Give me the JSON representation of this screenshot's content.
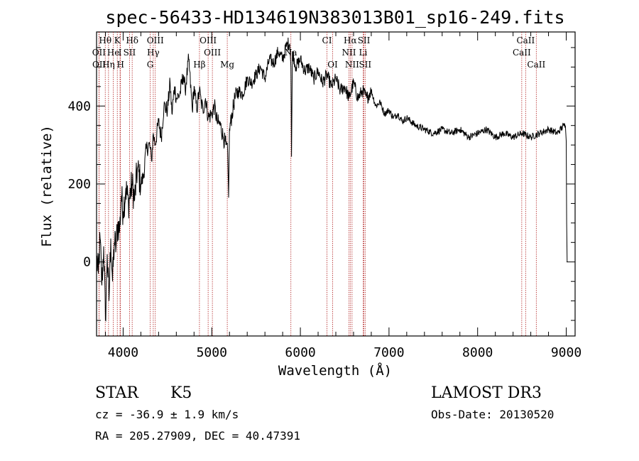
{
  "chart_data": {
    "type": "line",
    "title": "spec-56433-HD134619N383013B01_sp16-249.fits",
    "xlabel": "Wavelength (Å)",
    "ylabel": "Flux (relative)",
    "xlim": [
      3700,
      9100
    ],
    "ylim": [
      -190,
      590
    ],
    "xticks": [
      4000,
      5000,
      6000,
      7000,
      8000,
      9000
    ],
    "yticks": [
      0,
      200,
      400
    ],
    "series": [
      {
        "name": "spectrum",
        "x": [
          3700,
          3720,
          3740,
          3760,
          3780,
          3800,
          3820,
          3840,
          3860,
          3880,
          3900,
          3920,
          3940,
          3960,
          3980,
          4000,
          4030,
          4060,
          4100,
          4130,
          4160,
          4200,
          4230,
          4260,
          4300,
          4320,
          4340,
          4360,
          4400,
          4430,
          4460,
          4500,
          4530,
          4550,
          4580,
          4600,
          4640,
          4680,
          4700,
          4740,
          4780,
          4800,
          4830,
          4860,
          4880,
          4900,
          4930,
          4960,
          5000,
          5030,
          5060,
          5100,
          5130,
          5160,
          5180,
          5190,
          5200,
          5230,
          5260,
          5300,
          5350,
          5400,
          5450,
          5500,
          5550,
          5600,
          5650,
          5700,
          5750,
          5800,
          5850,
          5880,
          5893,
          5900,
          5910,
          5950,
          6000,
          6050,
          6100,
          6150,
          6200,
          6250,
          6300,
          6350,
          6400,
          6450,
          6500,
          6550,
          6600,
          6650,
          6700,
          6750,
          6800,
          6850,
          6900,
          6950,
          7000,
          7050,
          7100,
          7150,
          7200,
          7300,
          7400,
          7500,
          7600,
          7700,
          7800,
          7900,
          8000,
          8100,
          8200,
          8300,
          8400,
          8500,
          8600,
          8700,
          8800,
          8900,
          8970,
          8990,
          9000,
          9005,
          9010
        ],
        "values": [
          10,
          -30,
          60,
          -60,
          40,
          -150,
          20,
          -100,
          60,
          -50,
          50,
          40,
          100,
          80,
          170,
          130,
          190,
          150,
          200,
          160,
          240,
          200,
          220,
          290,
          300,
          260,
          330,
          300,
          360,
          320,
          400,
          390,
          460,
          380,
          450,
          420,
          430,
          480,
          440,
          520,
          390,
          450,
          390,
          440,
          410,
          390,
          420,
          370,
          380,
          400,
          360,
          350,
          320,
          300,
          280,
          165,
          340,
          380,
          420,
          440,
          430,
          470,
          460,
          480,
          500,
          470,
          520,
          510,
          540,
          520,
          560,
          560,
          500,
          270,
          540,
          500,
          520,
          490,
          500,
          470,
          490,
          460,
          480,
          450,
          470,
          440,
          450,
          420,
          460,
          420,
          440,
          420,
          440,
          400,
          410,
          380,
          390,
          370,
          380,
          360,
          370,
          350,
          340,
          330,
          340,
          330,
          340,
          320,
          330,
          340,
          320,
          330,
          320,
          330,
          320,
          330,
          340,
          330,
          350,
          350,
          310,
          100,
          0
        ]
      }
    ],
    "spectral_lines": [
      {
        "label": "Hθ",
        "wavelength": 3798,
        "row": 1
      },
      {
        "label": "K",
        "wavelength": 3934,
        "row": 1
      },
      {
        "label": "Hδ",
        "wavelength": 4102,
        "row": 1
      },
      {
        "label": "OIII",
        "wavelength": 4363,
        "row": 1
      },
      {
        "label": "OIII",
        "wavelength": 4959,
        "row": 1
      },
      {
        "label": "CI",
        "wavelength": 6300,
        "row": 1
      },
      {
        "label": "Hα",
        "wavelength": 6563,
        "row": 1
      },
      {
        "label": "SII",
        "wavelength": 6717,
        "row": 1
      },
      {
        "label": "CaII",
        "wavelength": 8542,
        "row": 1
      },
      {
        "label": "OII",
        "wavelength": 3727,
        "row": 2
      },
      {
        "label": "He",
        "wavelength": 3889,
        "row": 2
      },
      {
        "label": "I",
        "wavelength": 3965,
        "row": 2
      },
      {
        "label": "SII",
        "wavelength": 4072,
        "row": 2
      },
      {
        "label": "Hγ",
        "wavelength": 4340,
        "row": 2
      },
      {
        "label": "OIII",
        "wavelength": 5007,
        "row": 2
      },
      {
        "label": "Na",
        "wavelength": 5893,
        "row": 2
      },
      {
        "label": "NII",
        "wavelength": 6548,
        "row": 2
      },
      {
        "label": "Li",
        "wavelength": 6708,
        "row": 2
      },
      {
        "label": "CaII",
        "wavelength": 8498,
        "row": 2
      },
      {
        "label": "OII",
        "wavelength": 3729,
        "row": 3
      },
      {
        "label": "Hη",
        "wavelength": 3835,
        "row": 3
      },
      {
        "label": "H",
        "wavelength": 3970,
        "row": 3
      },
      {
        "label": "G",
        "wavelength": 4305,
        "row": 3
      },
      {
        "label": "Hβ",
        "wavelength": 4861,
        "row": 3
      },
      {
        "label": "Mg",
        "wavelength": 5175,
        "row": 3
      },
      {
        "label": "OI",
        "wavelength": 6364,
        "row": 3
      },
      {
        "label": "NII",
        "wavelength": 6583,
        "row": 3
      },
      {
        "label": "SII",
        "wavelength": 6731,
        "row": 3
      },
      {
        "label": "CaII",
        "wavelength": 8662,
        "row": 3
      }
    ]
  },
  "info": {
    "class_label": "STAR",
    "subclass": "K5",
    "survey": "LAMOST DR3",
    "cz": "cz = -36.9 ± 1.9 km/s",
    "obs_date": "Obs-Date: 20130520",
    "coords": "RA = 205.27909, DEC =  40.47391"
  }
}
